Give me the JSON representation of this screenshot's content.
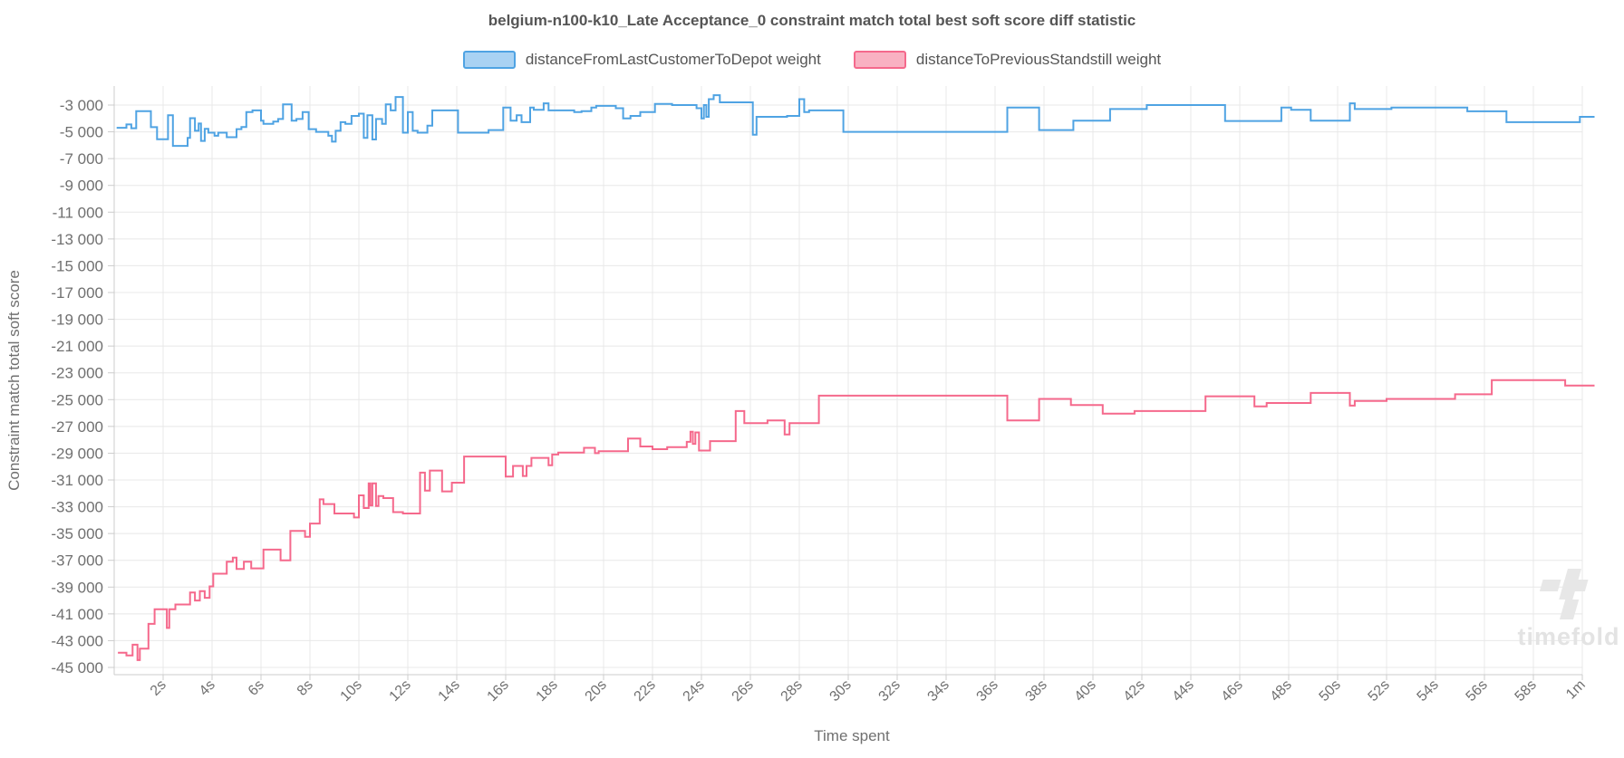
{
  "title": "belgium-n100-k10_Late Acceptance_0 constraint match total best soft score diff statistic",
  "legend": {
    "items": [
      {
        "label": "distanceFromLastCustomerToDepot weight",
        "line": "#4fa3e3",
        "fill": "#a9d2f3"
      },
      {
        "label": "distanceToPreviousStandstill weight",
        "line": "#f5698c",
        "fill": "#f9b1c2"
      }
    ]
  },
  "watermark": {
    "text": "timefold",
    "color": "#e7e7e7"
  },
  "chart_data": {
    "type": "line",
    "subtype": "step",
    "title": "belgium-n100-k10_Late Acceptance_0 constraint match total best soft score diff statistic",
    "xlabel": "Time spent",
    "ylabel": "Constraint match total soft score",
    "grid": true,
    "legend_position": "top",
    "xlim_seconds": [
      0,
      60.6
    ],
    "ylim": [
      -45500,
      -2000
    ],
    "y_ticks": [
      -3000,
      -5000,
      -7000,
      -9000,
      -11000,
      -13000,
      -15000,
      -17000,
      -19000,
      -21000,
      -23000,
      -25000,
      -27000,
      -29000,
      -31000,
      -33000,
      -35000,
      -37000,
      -39000,
      -41000,
      -43000,
      -45000
    ],
    "x_ticks": [
      {
        "t": 2,
        "label": "2s"
      },
      {
        "t": 4,
        "label": "4s"
      },
      {
        "t": 6,
        "label": "6s"
      },
      {
        "t": 8,
        "label": "8s"
      },
      {
        "t": 10,
        "label": "10s"
      },
      {
        "t": 12,
        "label": "12s"
      },
      {
        "t": 14,
        "label": "14s"
      },
      {
        "t": 16,
        "label": "16s"
      },
      {
        "t": 18,
        "label": "18s"
      },
      {
        "t": 20,
        "label": "20s"
      },
      {
        "t": 22,
        "label": "22s"
      },
      {
        "t": 24,
        "label": "24s"
      },
      {
        "t": 26,
        "label": "26s"
      },
      {
        "t": 28,
        "label": "28s"
      },
      {
        "t": 30,
        "label": "30s"
      },
      {
        "t": 32,
        "label": "32s"
      },
      {
        "t": 34,
        "label": "34s"
      },
      {
        "t": 36,
        "label": "36s"
      },
      {
        "t": 38,
        "label": "38s"
      },
      {
        "t": 40,
        "label": "40s"
      },
      {
        "t": 42,
        "label": "42s"
      },
      {
        "t": 44,
        "label": "44s"
      },
      {
        "t": 46,
        "label": "46s"
      },
      {
        "t": 48,
        "label": "48s"
      },
      {
        "t": 50,
        "label": "50s"
      },
      {
        "t": 52,
        "label": "52s"
      },
      {
        "t": 54,
        "label": "54s"
      },
      {
        "t": 56,
        "label": "56s"
      },
      {
        "t": 58,
        "label": "58s"
      },
      {
        "t": 60,
        "label": "1m"
      }
    ],
    "series": [
      {
        "name": "distanceFromLastCustomerToDepot weight",
        "color": "#4fa3e3",
        "end_t": 60.5,
        "points": [
          [
            0.1,
            -4700
          ],
          [
            0.5,
            -4450
          ],
          [
            0.7,
            -4730
          ],
          [
            0.9,
            -3450
          ],
          [
            1.5,
            -4650
          ],
          [
            1.75,
            -5550
          ],
          [
            2.2,
            -3760
          ],
          [
            2.4,
            -6050
          ],
          [
            3.0,
            -5450
          ],
          [
            3.1,
            -3980
          ],
          [
            3.3,
            -4920
          ],
          [
            3.45,
            -4380
          ],
          [
            3.55,
            -5680
          ],
          [
            3.7,
            -4770
          ],
          [
            3.85,
            -5060
          ],
          [
            4.1,
            -5290
          ],
          [
            4.25,
            -5060
          ],
          [
            4.6,
            -5400
          ],
          [
            5.0,
            -4800
          ],
          [
            5.2,
            -4640
          ],
          [
            5.4,
            -3520
          ],
          [
            5.65,
            -3400
          ],
          [
            6.0,
            -4160
          ],
          [
            6.1,
            -4400
          ],
          [
            6.5,
            -4230
          ],
          [
            6.7,
            -4040
          ],
          [
            6.9,
            -2950
          ],
          [
            7.25,
            -4160
          ],
          [
            7.45,
            -4040
          ],
          [
            7.7,
            -3520
          ],
          [
            7.95,
            -4800
          ],
          [
            8.25,
            -5000
          ],
          [
            8.75,
            -5290
          ],
          [
            8.9,
            -5730
          ],
          [
            9.05,
            -4920
          ],
          [
            9.25,
            -4280
          ],
          [
            9.45,
            -4400
          ],
          [
            9.7,
            -3810
          ],
          [
            10.0,
            -3640
          ],
          [
            10.2,
            -5450
          ],
          [
            10.35,
            -3760
          ],
          [
            10.55,
            -5570
          ],
          [
            10.7,
            -4040
          ],
          [
            10.95,
            -4400
          ],
          [
            11.1,
            -2950
          ],
          [
            11.3,
            -3400
          ],
          [
            11.5,
            -2400
          ],
          [
            11.8,
            -5060
          ],
          [
            12.0,
            -3520
          ],
          [
            12.2,
            -4920
          ],
          [
            12.4,
            -5060
          ],
          [
            12.8,
            -4540
          ],
          [
            13.0,
            -3400
          ],
          [
            14.05,
            -5060
          ],
          [
            15.3,
            -4870
          ],
          [
            15.9,
            -3180
          ],
          [
            16.2,
            -4160
          ],
          [
            16.45,
            -3760
          ],
          [
            16.65,
            -4280
          ],
          [
            17.0,
            -3180
          ],
          [
            17.15,
            -3360
          ],
          [
            17.55,
            -2870
          ],
          [
            17.75,
            -3400
          ],
          [
            18.8,
            -3520
          ],
          [
            19.1,
            -3450
          ],
          [
            19.5,
            -3180
          ],
          [
            19.7,
            -3060
          ],
          [
            20.5,
            -3240
          ],
          [
            20.8,
            -4000
          ],
          [
            21.1,
            -3810
          ],
          [
            21.5,
            -3520
          ],
          [
            22.1,
            -2920
          ],
          [
            22.8,
            -3000
          ],
          [
            23.8,
            -3240
          ],
          [
            24.0,
            -4000
          ],
          [
            24.1,
            -3000
          ],
          [
            24.2,
            -3880
          ],
          [
            24.3,
            -2560
          ],
          [
            24.5,
            -2260
          ],
          [
            24.75,
            -2800
          ],
          [
            26.1,
            -5210
          ],
          [
            26.25,
            -3880
          ],
          [
            27.5,
            -3810
          ],
          [
            28.0,
            -2560
          ],
          [
            28.2,
            -3520
          ],
          [
            28.4,
            -3400
          ],
          [
            29.8,
            -5000
          ],
          [
            36.5,
            -3180
          ],
          [
            37.8,
            -4870
          ],
          [
            39.2,
            -4160
          ],
          [
            40.7,
            -3300
          ],
          [
            42.2,
            -3000
          ],
          [
            45.4,
            -4190
          ],
          [
            47.7,
            -3180
          ],
          [
            48.1,
            -3360
          ],
          [
            48.9,
            -4160
          ],
          [
            50.5,
            -2870
          ],
          [
            50.7,
            -3300
          ],
          [
            52.2,
            -3180
          ],
          [
            55.3,
            -3470
          ],
          [
            56.9,
            -4280
          ],
          [
            59.9,
            -3880
          ]
        ]
      },
      {
        "name": "distanceToPreviousStandstill weight",
        "color": "#f5698c",
        "end_t": 60.5,
        "points": [
          [
            0.15,
            -43900
          ],
          [
            0.5,
            -44100
          ],
          [
            0.75,
            -43300
          ],
          [
            0.95,
            -44450
          ],
          [
            1.05,
            -43600
          ],
          [
            1.4,
            -41750
          ],
          [
            1.65,
            -40650
          ],
          [
            2.15,
            -42050
          ],
          [
            2.25,
            -40650
          ],
          [
            2.5,
            -40300
          ],
          [
            3.1,
            -39400
          ],
          [
            3.3,
            -40000
          ],
          [
            3.5,
            -39300
          ],
          [
            3.7,
            -39800
          ],
          [
            3.9,
            -38950
          ],
          [
            4.05,
            -38000
          ],
          [
            4.6,
            -37100
          ],
          [
            4.85,
            -36800
          ],
          [
            5.0,
            -37650
          ],
          [
            5.3,
            -37100
          ],
          [
            5.6,
            -37600
          ],
          [
            6.1,
            -36200
          ],
          [
            6.8,
            -37000
          ],
          [
            7.2,
            -34800
          ],
          [
            7.8,
            -35250
          ],
          [
            8.0,
            -34250
          ],
          [
            8.4,
            -32450
          ],
          [
            8.55,
            -32800
          ],
          [
            9.0,
            -33500
          ],
          [
            9.8,
            -33800
          ],
          [
            10.0,
            -32150
          ],
          [
            10.2,
            -33100
          ],
          [
            10.4,
            -31250
          ],
          [
            10.47,
            -32900
          ],
          [
            10.55,
            -31250
          ],
          [
            10.7,
            -32950
          ],
          [
            10.8,
            -32200
          ],
          [
            11.0,
            -32350
          ],
          [
            11.4,
            -33400
          ],
          [
            11.8,
            -33500
          ],
          [
            12.5,
            -30450
          ],
          [
            12.7,
            -31800
          ],
          [
            12.9,
            -30300
          ],
          [
            13.4,
            -31850
          ],
          [
            13.8,
            -31200
          ],
          [
            14.3,
            -29250
          ],
          [
            16.0,
            -30750
          ],
          [
            16.3,
            -29950
          ],
          [
            16.7,
            -30700
          ],
          [
            16.85,
            -29950
          ],
          [
            17.05,
            -29350
          ],
          [
            17.75,
            -29900
          ],
          [
            17.9,
            -29100
          ],
          [
            18.15,
            -28950
          ],
          [
            19.2,
            -28600
          ],
          [
            19.65,
            -29000
          ],
          [
            19.8,
            -28850
          ],
          [
            21.0,
            -27900
          ],
          [
            21.5,
            -28500
          ],
          [
            22.0,
            -28700
          ],
          [
            22.6,
            -28550
          ],
          [
            23.4,
            -28150
          ],
          [
            23.55,
            -27400
          ],
          [
            23.65,
            -28300
          ],
          [
            23.75,
            -27450
          ],
          [
            23.9,
            -28800
          ],
          [
            24.35,
            -28100
          ],
          [
            25.4,
            -25850
          ],
          [
            25.75,
            -26750
          ],
          [
            26.7,
            -26550
          ],
          [
            27.4,
            -27600
          ],
          [
            27.6,
            -26750
          ],
          [
            28.8,
            -24700
          ],
          [
            36.5,
            -26550
          ],
          [
            37.8,
            -24950
          ],
          [
            39.1,
            -25400
          ],
          [
            40.4,
            -26050
          ],
          [
            41.7,
            -25850
          ],
          [
            44.6,
            -24750
          ],
          [
            46.6,
            -25500
          ],
          [
            47.1,
            -25250
          ],
          [
            48.9,
            -24500
          ],
          [
            50.5,
            -25450
          ],
          [
            50.7,
            -25100
          ],
          [
            52.0,
            -24950
          ],
          [
            54.8,
            -24600
          ],
          [
            56.3,
            -23550
          ],
          [
            59.3,
            -23950
          ]
        ]
      }
    ]
  }
}
